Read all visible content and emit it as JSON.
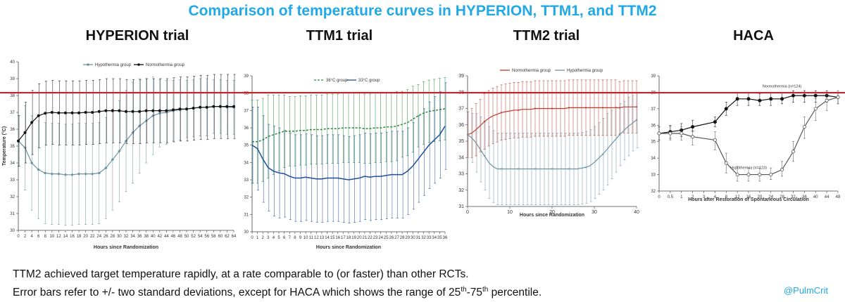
{
  "page": {
    "title": "Comparison of temperature curves in HYPERION, TTM1, and TTM2",
    "note_line1": "TTM2 achieved target temperature rapidly, at a rate comparable to (or faster) than other RCTs.",
    "note_line2_part1": "Error bars refer to +/- two standard deviations, except for HACA which shows the range of 25",
    "note_line2_sup1": "th",
    "note_line2_part2": "-75",
    "note_line2_sup2": "th",
    "note_line2_part3": " percentile.",
    "handle": "@PulmCrit"
  },
  "colors": {
    "title": "#21a8e6",
    "reference_line": "#e8101a"
  },
  "chart_data": [
    {
      "type": "line",
      "panel_title": "HYPERION trial",
      "xlabel": "Hours since Randomization",
      "ylabel": "Temperature (°C)",
      "xlim": [
        0,
        64
      ],
      "ylim": [
        30,
        40
      ],
      "xticks": [
        0,
        2,
        4,
        6,
        8,
        10,
        12,
        14,
        16,
        18,
        20,
        22,
        24,
        26,
        28,
        30,
        32,
        34,
        36,
        38,
        40,
        42,
        44,
        46,
        48,
        50,
        52,
        54,
        56,
        58,
        60,
        62,
        64
      ],
      "yticks": [
        30,
        31,
        32,
        33,
        34,
        35,
        36,
        37,
        38,
        39,
        40
      ],
      "legend_position": "top-left",
      "error_bars": "±2 SD",
      "series": [
        {
          "name": "Hypothermia group",
          "color": "#6d93a3",
          "x": [
            0,
            2,
            4,
            6,
            8,
            10,
            12,
            14,
            16,
            18,
            20,
            22,
            24,
            26,
            28,
            30,
            32,
            34,
            36,
            38,
            40,
            42,
            44,
            46,
            48,
            50,
            52,
            54,
            56,
            58,
            60,
            62,
            64
          ],
          "y": [
            35.3,
            34.9,
            34.0,
            33.6,
            33.4,
            33.35,
            33.35,
            33.3,
            33.3,
            33.35,
            33.35,
            33.35,
            33.4,
            33.7,
            34.2,
            34.7,
            35.3,
            35.8,
            36.2,
            36.5,
            36.8,
            36.95,
            37.0,
            37.1,
            37.15,
            37.2,
            37.25,
            37.3,
            37.3,
            37.35,
            37.35,
            37.3,
            37.3
          ],
          "err": [
            1.5,
            2.5,
            2.8,
            2.9,
            3.0,
            3.0,
            3.0,
            3.0,
            3.0,
            3.0,
            3.0,
            3.0,
            3.0,
            3.0,
            3.0,
            3.0,
            3.0,
            3.0,
            2.8,
            2.5,
            2.3,
            2.0,
            1.9,
            1.8,
            1.8,
            1.7,
            1.7,
            1.7,
            1.7,
            1.6,
            1.6,
            1.6,
            1.6
          ]
        },
        {
          "name": "Normothermia group",
          "color": "#111111",
          "x": [
            0,
            2,
            4,
            6,
            8,
            10,
            12,
            14,
            16,
            18,
            20,
            22,
            24,
            26,
            28,
            30,
            32,
            34,
            36,
            38,
            40,
            42,
            44,
            46,
            48,
            50,
            52,
            54,
            56,
            58,
            60,
            62,
            64
          ],
          "y": [
            35.3,
            35.8,
            36.4,
            36.8,
            36.95,
            37.0,
            36.97,
            36.97,
            36.97,
            36.97,
            37.0,
            37.0,
            37.05,
            37.1,
            37.1,
            37.1,
            37.05,
            37.05,
            37.05,
            37.1,
            37.1,
            37.1,
            37.1,
            37.15,
            37.2,
            37.2,
            37.25,
            37.3,
            37.3,
            37.35,
            37.35,
            37.35,
            37.35
          ],
          "err": [
            1.5,
            1.8,
            1.9,
            1.9,
            1.9,
            1.9,
            1.9,
            1.9,
            1.9,
            1.9,
            1.9,
            1.9,
            1.9,
            1.9,
            1.9,
            1.9,
            1.9,
            1.9,
            1.9,
            1.9,
            1.9,
            1.9,
            1.9,
            1.9,
            1.9,
            1.9,
            1.9,
            1.9,
            1.9,
            1.9,
            1.9,
            1.9,
            1.9
          ]
        }
      ]
    },
    {
      "type": "line",
      "panel_title": "TTM1 trial",
      "xlabel": "Hours since Randomization",
      "ylabel": "",
      "xlim": [
        0,
        36
      ],
      "ylim": [
        30,
        39
      ],
      "xticks": [
        0,
        1,
        2,
        3,
        4,
        5,
        6,
        7,
        8,
        9,
        10,
        11,
        12,
        13,
        14,
        15,
        16,
        17,
        18,
        19,
        20,
        21,
        22,
        23,
        24,
        25,
        26,
        27,
        28,
        29,
        30,
        31,
        32,
        33,
        34,
        35,
        36
      ],
      "yticks": [
        30,
        31,
        32,
        33,
        34,
        35,
        36,
        37,
        38,
        39
      ],
      "legend_position": "top-left",
      "error_bars": "±2 SD",
      "series": [
        {
          "name": "36°C group",
          "color": "#2e8b3a",
          "dash": true,
          "x": [
            0,
            1,
            2,
            3,
            4,
            5,
            6,
            7,
            8,
            9,
            10,
            11,
            12,
            13,
            14,
            15,
            16,
            17,
            18,
            19,
            20,
            21,
            22,
            23,
            24,
            25,
            26,
            27,
            28,
            29,
            30,
            31,
            32,
            33,
            34,
            35,
            36
          ],
          "y": [
            35.2,
            35.2,
            35.3,
            35.5,
            35.6,
            35.7,
            35.8,
            35.8,
            35.8,
            35.85,
            35.85,
            35.9,
            35.9,
            35.9,
            35.95,
            35.95,
            35.95,
            36.0,
            36.0,
            36.0,
            36.0,
            35.95,
            35.95,
            36.0,
            36.0,
            36.05,
            36.05,
            36.1,
            36.2,
            36.3,
            36.5,
            36.7,
            36.85,
            36.95,
            37.0,
            37.05,
            37.1
          ],
          "err": [
            2.4,
            2.4,
            2.4,
            2.4,
            2.3,
            2.2,
            2.1,
            2.0,
            2.0,
            2.0,
            2.0,
            2.0,
            2.0,
            2.0,
            2.0,
            2.0,
            2.0,
            2.0,
            2.0,
            2.0,
            2.0,
            2.0,
            2.0,
            2.0,
            2.0,
            2.0,
            2.0,
            2.0,
            1.9,
            1.9,
            1.9,
            1.8,
            1.8,
            1.8,
            1.8,
            1.8,
            1.8
          ]
        },
        {
          "name": "33°C group",
          "color": "#1f4e9a",
          "dash": false,
          "x": [
            0,
            1,
            2,
            3,
            4,
            5,
            6,
            7,
            8,
            9,
            10,
            11,
            12,
            13,
            14,
            15,
            16,
            17,
            18,
            19,
            20,
            21,
            22,
            23,
            24,
            25,
            26,
            27,
            28,
            29,
            30,
            31,
            32,
            33,
            34,
            35,
            36
          ],
          "y": [
            35.0,
            34.8,
            34.2,
            33.7,
            33.5,
            33.4,
            33.35,
            33.2,
            33.1,
            33.1,
            33.15,
            33.1,
            33.05,
            33.05,
            33.1,
            33.1,
            33.1,
            33.05,
            33.0,
            33.05,
            33.1,
            33.2,
            33.15,
            33.2,
            33.2,
            33.25,
            33.3,
            33.3,
            33.3,
            33.5,
            33.8,
            34.2,
            34.6,
            35.0,
            35.3,
            35.6,
            36.1
          ],
          "err": [
            2.2,
            2.4,
            2.5,
            2.5,
            2.6,
            2.6,
            2.5,
            2.5,
            2.5,
            2.5,
            2.5,
            2.5,
            2.5,
            2.5,
            2.5,
            2.5,
            2.5,
            2.5,
            2.5,
            2.5,
            2.5,
            2.5,
            2.5,
            2.5,
            2.5,
            2.5,
            2.5,
            2.5,
            2.5,
            2.5,
            2.5,
            2.5,
            2.5,
            2.5,
            2.5,
            2.5,
            2.5
          ]
        }
      ]
    },
    {
      "type": "line",
      "panel_title": "TTM2 trial",
      "xlabel": "Hours since Randomization",
      "ylabel": "",
      "xlim": [
        0,
        40
      ],
      "ylim": [
        31,
        39
      ],
      "xticks": [
        0,
        10,
        20,
        30,
        40
      ],
      "yticks": [
        31,
        32,
        33,
        34,
        35,
        36,
        37,
        38,
        39
      ],
      "legend_position": "top",
      "error_bars": "±2 SD",
      "series": [
        {
          "name": "Normothermia group",
          "color": "#c0392b",
          "x": [
            0,
            1,
            2,
            3,
            4,
            5,
            6,
            7,
            8,
            9,
            10,
            11,
            12,
            13,
            14,
            15,
            16,
            17,
            18,
            19,
            20,
            21,
            22,
            23,
            24,
            25,
            26,
            27,
            28,
            29,
            30,
            31,
            32,
            33,
            34,
            35,
            36,
            37,
            38,
            39,
            40
          ],
          "y": [
            35.4,
            35.5,
            35.7,
            35.95,
            36.2,
            36.4,
            36.55,
            36.65,
            36.75,
            36.8,
            36.85,
            36.9,
            36.9,
            36.95,
            36.95,
            36.95,
            37.0,
            37.0,
            37.0,
            37.0,
            37.0,
            37.0,
            37.0,
            37.0,
            37.05,
            37.05,
            37.05,
            37.05,
            37.05,
            37.05,
            37.05,
            37.05,
            37.05,
            37.05,
            37.05,
            37.05,
            37.05,
            37.1,
            37.1,
            37.1,
            37.1
          ],
          "err": [
            1.4,
            1.5,
            1.6,
            1.6,
            1.7,
            1.7,
            1.7,
            1.7,
            1.7,
            1.7,
            1.7,
            1.7,
            1.7,
            1.7,
            1.7,
            1.7,
            1.7,
            1.7,
            1.7,
            1.7,
            1.7,
            1.7,
            1.7,
            1.7,
            1.7,
            1.7,
            1.7,
            1.7,
            1.7,
            1.7,
            1.7,
            1.7,
            1.7,
            1.7,
            1.7,
            1.7,
            1.6,
            1.6,
            1.6,
            1.6,
            1.6
          ]
        },
        {
          "name": "Hypothermia group",
          "color": "#6d93a3",
          "x": [
            0,
            1,
            2,
            3,
            4,
            5,
            6,
            7,
            8,
            9,
            10,
            11,
            12,
            13,
            14,
            15,
            16,
            17,
            18,
            19,
            20,
            21,
            22,
            23,
            24,
            25,
            26,
            27,
            28,
            29,
            30,
            31,
            32,
            33,
            34,
            35,
            36,
            37,
            38,
            39,
            40
          ],
          "y": [
            35.4,
            35.2,
            34.9,
            34.5,
            34.1,
            33.7,
            33.45,
            33.3,
            33.3,
            33.3,
            33.3,
            33.3,
            33.3,
            33.3,
            33.3,
            33.3,
            33.3,
            33.3,
            33.3,
            33.3,
            33.3,
            33.3,
            33.3,
            33.3,
            33.3,
            33.3,
            33.3,
            33.35,
            33.4,
            33.5,
            33.7,
            33.95,
            34.2,
            34.5,
            34.8,
            35.1,
            35.4,
            35.65,
            35.9,
            36.1,
            36.3
          ],
          "err": [
            1.4,
            1.5,
            1.8,
            2.0,
            2.1,
            2.2,
            2.2,
            2.2,
            2.2,
            2.2,
            2.2,
            2.2,
            2.2,
            2.2,
            2.2,
            2.2,
            2.2,
            2.2,
            2.2,
            2.2,
            2.2,
            2.2,
            2.2,
            2.2,
            2.2,
            2.2,
            2.2,
            2.2,
            2.2,
            2.2,
            2.2,
            2.2,
            2.2,
            2.2,
            2.1,
            2.0,
            1.9,
            1.8,
            1.8,
            1.7,
            1.7
          ]
        }
      ]
    },
    {
      "type": "line",
      "panel_title": "HACA",
      "xlabel": "Hours after Restoration of Spontaneous Circulation",
      "ylabel": "",
      "xlim": [
        0,
        48
      ],
      "ylim": [
        32,
        39
      ],
      "xticks": [
        0,
        0.5,
        1,
        2,
        3,
        4,
        8,
        12,
        16,
        20,
        24,
        28,
        32,
        36,
        40,
        44,
        48
      ],
      "yticks": [
        32,
        33,
        34,
        35,
        36,
        37,
        38,
        39
      ],
      "legend_position": "inline",
      "error_bars": "25th-75th percentile",
      "series": [
        {
          "name": "Normothermia (n=124)",
          "color": "#111111",
          "marker": "filled",
          "x": [
            0,
            0.5,
            1,
            2,
            4,
            8,
            12,
            16,
            20,
            24,
            28,
            32,
            36,
            40,
            44,
            48
          ],
          "y": [
            35.5,
            35.6,
            35.7,
            35.9,
            36.2,
            37.0,
            37.6,
            37.6,
            37.5,
            37.6,
            37.6,
            37.8,
            37.8,
            37.8,
            37.8,
            37.7
          ],
          "lo": [
            35.1,
            35.2,
            35.3,
            35.6,
            35.9,
            36.6,
            37.2,
            37.2,
            37.2,
            37.2,
            37.3,
            37.4,
            37.4,
            37.4,
            37.4,
            37.3
          ],
          "hi": [
            35.9,
            36.0,
            36.1,
            36.3,
            36.5,
            37.4,
            38.0,
            38.0,
            37.9,
            38.0,
            38.0,
            38.1,
            38.1,
            38.1,
            38.1,
            38.0
          ]
        },
        {
          "name": "Hypothermia (n=123)",
          "color": "#555555",
          "marker": "open",
          "x": [
            0,
            0.5,
            1,
            2,
            4,
            8,
            12,
            16,
            20,
            24,
            28,
            32,
            36,
            40,
            44,
            48
          ],
          "y": [
            35.5,
            35.5,
            35.5,
            35.3,
            35.1,
            33.7,
            33.0,
            33.0,
            33.0,
            33.0,
            33.3,
            34.4,
            35.9,
            37.0,
            37.5,
            37.7
          ],
          "lo": [
            35.1,
            35.1,
            35.1,
            34.8,
            34.5,
            33.1,
            32.6,
            32.6,
            32.6,
            32.7,
            32.9,
            33.8,
            35.2,
            36.3,
            36.9,
            37.3
          ],
          "hi": [
            35.9,
            35.9,
            35.9,
            35.7,
            35.6,
            34.3,
            33.5,
            33.4,
            33.4,
            33.4,
            33.8,
            35.0,
            36.5,
            37.6,
            38.0,
            38.1
          ]
        }
      ]
    }
  ]
}
